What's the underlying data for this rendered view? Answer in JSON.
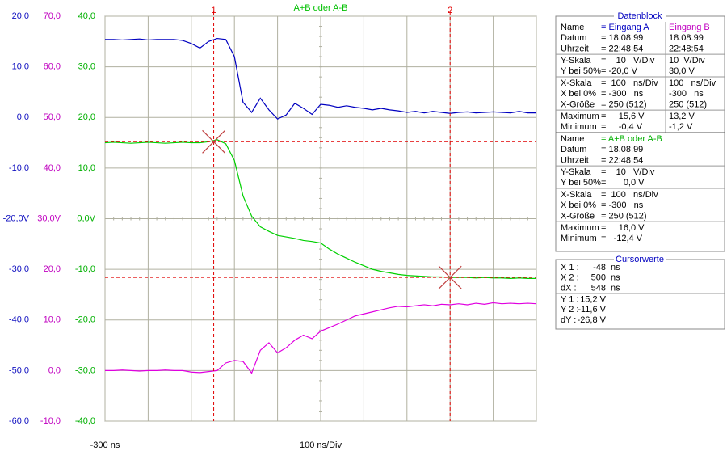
{
  "chart_data": {
    "type": "line",
    "title": "A+B oder A-B",
    "xlabel": "100 ns/Div",
    "xlim": [
      -300,
      700
    ],
    "xticks": [
      {
        "value": -300,
        "label": "-300 ns"
      },
      -200,
      -100,
      0,
      100,
      200,
      300,
      400,
      500,
      600,
      700
    ],
    "ylim": [
      -60,
      20
    ],
    "yticks": [
      {
        "value": 20,
        "label": "20,0"
      },
      {
        "value": 10,
        "label": "10,0"
      },
      {
        "value": 0,
        "label": "0,0"
      },
      {
        "value": -10,
        "label": "-10,0"
      },
      {
        "value": -20,
        "label": "-20,0V"
      },
      {
        "value": -30,
        "label": "-30,0"
      },
      {
        "value": -40,
        "label": "-40,0"
      },
      {
        "value": -50,
        "label": "-50,0"
      },
      {
        "value": -60,
        "label": "-60,0"
      }
    ],
    "y2lim": [
      -10,
      70
    ],
    "y2ticks": [
      {
        "value": 70,
        "label": "70,0"
      },
      {
        "value": 60,
        "label": "60,0"
      },
      {
        "value": 50,
        "label": "50,0"
      },
      {
        "value": 40,
        "label": "40,0"
      },
      {
        "value": 30,
        "label": "30,0V"
      },
      {
        "value": 20,
        "label": "20,0"
      },
      {
        "value": 10,
        "label": "10,0"
      },
      {
        "value": 0,
        "label": "0,0"
      },
      {
        "value": -10,
        "label": "-10,0"
      }
    ],
    "y3lim": [
      -40,
      40
    ],
    "y3ticks": [
      {
        "value": 40,
        "label": "40,0"
      },
      {
        "value": 30,
        "label": "30,0"
      },
      {
        "value": 20,
        "label": "20,0"
      },
      {
        "value": 10,
        "label": "10,0"
      },
      {
        "value": 0,
        "label": "0,0V"
      },
      {
        "value": -10,
        "label": "-10,0"
      },
      {
        "value": -20,
        "label": "-20,0"
      },
      {
        "value": -30,
        "label": "-30,0"
      },
      {
        "value": -40,
        "label": "-40,0"
      }
    ],
    "grid": true,
    "x": [
      -300,
      -280,
      -260,
      -240,
      -220,
      -200,
      -180,
      -160,
      -140,
      -120,
      -100,
      -80,
      -60,
      -40,
      -20,
      0,
      20,
      40,
      60,
      80,
      100,
      120,
      140,
      160,
      180,
      200,
      220,
      240,
      260,
      280,
      300,
      320,
      340,
      360,
      380,
      400,
      420,
      440,
      460,
      480,
      500,
      520,
      540,
      560,
      580,
      600,
      620,
      640,
      660,
      680,
      700
    ],
    "series": [
      {
        "name": "Eingang A",
        "color": "#0000c0",
        "axis": "y",
        "values": [
          15.4,
          15.4,
          15.3,
          15.4,
          15.5,
          15.3,
          15.4,
          15.4,
          15.4,
          15.2,
          14.6,
          13.7,
          15.0,
          15.6,
          15.4,
          12.0,
          3.0,
          1.0,
          3.8,
          1.5,
          -0.3,
          0.5,
          2.8,
          1.8,
          0.6,
          2.6,
          2.4,
          2.0,
          2.3,
          2.0,
          1.8,
          1.5,
          1.8,
          1.5,
          1.3,
          1.0,
          1.2,
          0.9,
          1.2,
          1.0,
          0.8,
          1.0,
          1.1,
          0.9,
          1.0,
          1.1,
          1.0,
          0.9,
          1.2,
          0.9,
          0.9
        ]
      },
      {
        "name": "Eingang B",
        "color": "#e000e0",
        "axis": "y2",
        "values": [
          0.0,
          0.0,
          0.1,
          0.0,
          -0.1,
          0.0,
          0.0,
          0.1,
          0.0,
          0.0,
          -0.3,
          -0.4,
          -0.2,
          0.0,
          1.5,
          2.0,
          1.8,
          -0.5,
          4.0,
          5.5,
          3.5,
          4.5,
          6.0,
          7.0,
          6.3,
          7.8,
          8.5,
          9.2,
          10.0,
          10.8,
          11.2,
          11.6,
          12.0,
          12.4,
          12.7,
          12.6,
          12.8,
          13.0,
          12.8,
          13.1,
          13.0,
          13.2,
          13.0,
          13.3,
          13.1,
          13.4,
          13.2,
          13.3,
          13.2,
          13.3,
          13.2
        ]
      },
      {
        "name": "A+B oder A-B",
        "color": "#00d000",
        "axis": "y3",
        "values": [
          15.0,
          15.1,
          15.0,
          14.9,
          15.0,
          15.1,
          15.0,
          14.9,
          15.0,
          15.1,
          15.0,
          15.0,
          15.2,
          15.6,
          14.8,
          11.5,
          4.5,
          0.5,
          -1.6,
          -2.5,
          -3.3,
          -3.6,
          -3.9,
          -4.3,
          -4.5,
          -4.8,
          -6.0,
          -7.0,
          -7.8,
          -8.6,
          -9.3,
          -10.0,
          -10.4,
          -10.7,
          -11.0,
          -11.2,
          -11.3,
          -11.4,
          -11.5,
          -11.5,
          -11.6,
          -11.6,
          -11.6,
          -11.7,
          -11.6,
          -11.7,
          -11.7,
          -11.8,
          -11.7,
          -11.8,
          -11.8
        ]
      }
    ],
    "cursors": [
      {
        "label": "1",
        "x": -48,
        "y": 15.2
      },
      {
        "label": "2",
        "x": 500,
        "y": -11.6
      }
    ]
  },
  "datenblock": {
    "title": "Datenblock",
    "sections": [
      {
        "rows": [
          [
            "Name",
            "= Eingang A",
            "Eingang B"
          ],
          [
            "Datum",
            "= 18.08.99",
            "18.08.99"
          ],
          [
            "Uhrzeit",
            "= 22:48:54",
            "22:48:54"
          ],
          [
            "Y-Skala",
            "=    10   V/Div",
            "10  V/Div"
          ],
          [
            "Y bei 50%",
            "= -20,0 V",
            "30,0 V"
          ],
          [
            "X-Skala",
            "=  100   ns/Div",
            "100   ns/Div"
          ],
          [
            "X bei 0%",
            "= -300   ns",
            "-300   ns"
          ],
          [
            "X-Größe",
            "= 250 (512)",
            "250 (512)"
          ],
          [
            "Maximum",
            "=     15,6 V",
            "13,2 V"
          ],
          [
            "Minimum",
            "=     -0,4 V",
            "-1,2 V"
          ]
        ]
      },
      {
        "rows": [
          [
            "Name",
            "= A+B oder A-B"
          ],
          [
            "Datum",
            "= 18.08.99"
          ],
          [
            "Uhrzeit",
            "= 22:48:54"
          ],
          [
            "Y-Skala",
            "=    10   V/Div"
          ],
          [
            "Y bei 50%",
            "=       0,0 V"
          ],
          [
            "X-Skala",
            "=  100   ns/Div"
          ],
          [
            "X bei 0%",
            "= -300   ns"
          ],
          [
            "X-Größe",
            "= 250 (512)"
          ],
          [
            "Maximum",
            "=     16,0 V"
          ],
          [
            "Minimum",
            "=   -12,4 V"
          ]
        ]
      }
    ]
  },
  "cursorwerte": {
    "title": "Cursorwerte",
    "rows": [
      [
        "X 1 :",
        "-48",
        "ns"
      ],
      [
        "X 2 :",
        "500",
        "ns"
      ],
      [
        "dX :",
        "548",
        "ns"
      ],
      [
        "Y 1 :",
        "15,2 V"
      ],
      [
        "Y 2 :",
        "-11,6 V"
      ],
      [
        "dY :",
        "-26,8 V"
      ]
    ]
  }
}
